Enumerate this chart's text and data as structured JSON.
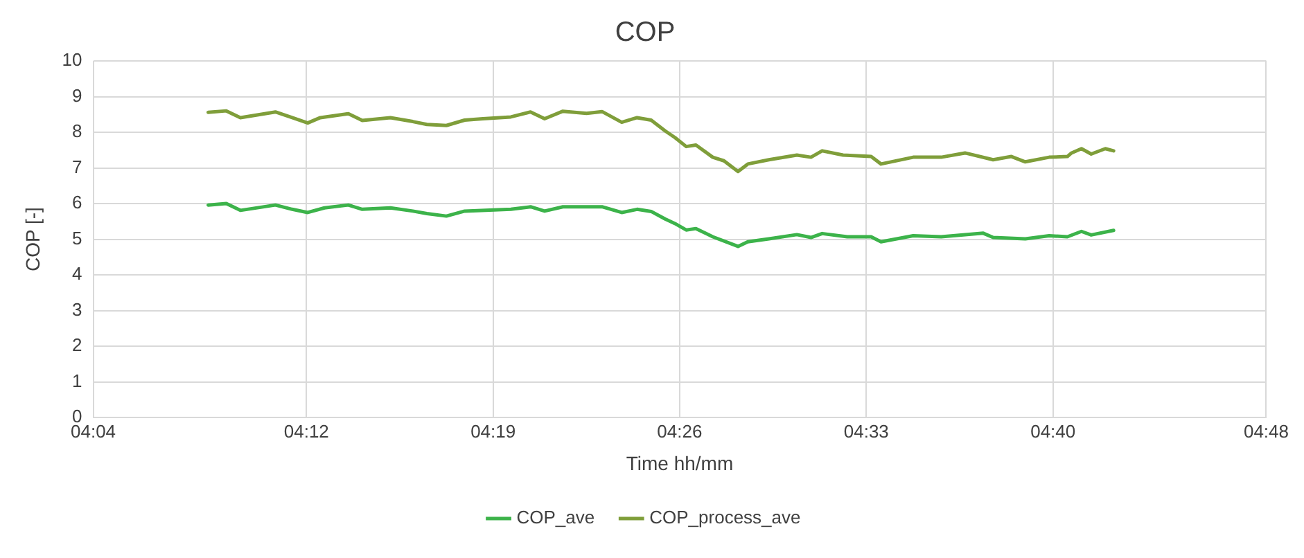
{
  "chart_data": {
    "type": "line",
    "title": "COP",
    "xlabel": "Time hh/mm",
    "ylabel": "COP [-]",
    "xlim": [
      4.0667,
      4.8
    ],
    "xticks": [
      {
        "value": 4.0667,
        "label": "04:04"
      },
      {
        "value": 4.2,
        "label": "04:12"
      },
      {
        "value": 4.3167,
        "label": "04:19"
      },
      {
        "value": 4.4333,
        "label": "04:26"
      },
      {
        "value": 4.55,
        "label": "04:33"
      },
      {
        "value": 4.6667,
        "label": "04:40"
      },
      {
        "value": 4.8,
        "label": "04:48"
      }
    ],
    "ylim": [
      0,
      10
    ],
    "yticks": [
      0,
      1,
      2,
      3,
      4,
      5,
      6,
      7,
      8,
      9,
      10
    ],
    "grid": true,
    "legend": "bottom",
    "marker": "none",
    "line_style": "solid",
    "series": [
      {
        "name": "COP_ave",
        "color": "#3cb34a",
        "x": [
          4.1386,
          4.1499,
          4.1587,
          4.1806,
          4.1911,
          4.2008,
          4.2113,
          4.2262,
          4.2349,
          4.2525,
          4.2665,
          4.2753,
          4.2875,
          4.2989,
          4.3278,
          4.3401,
          4.3489,
          4.3603,
          4.3848,
          4.3971,
          4.4067,
          4.4155,
          4.4242,
          4.4304,
          4.4374,
          4.4435,
          4.454,
          4.4698,
          4.4759,
          4.4891,
          4.5066,
          4.5154,
          4.5224,
          4.5381,
          4.553,
          4.5592,
          4.5793,
          4.5968,
          4.6231,
          4.6293,
          4.6494,
          4.6643,
          4.6757,
          4.6845,
          4.6906,
          4.7046
        ],
        "values": [
          5.96,
          6.0,
          5.81,
          5.96,
          5.84,
          5.75,
          5.88,
          5.96,
          5.84,
          5.88,
          5.79,
          5.72,
          5.65,
          5.79,
          5.84,
          5.91,
          5.79,
          5.91,
          5.91,
          5.75,
          5.84,
          5.78,
          5.57,
          5.44,
          5.26,
          5.3,
          5.07,
          4.8,
          4.93,
          5.01,
          5.13,
          5.05,
          5.16,
          5.07,
          5.07,
          4.93,
          5.1,
          5.07,
          5.17,
          5.05,
          5.01,
          5.1,
          5.07,
          5.22,
          5.12,
          5.25
        ]
      },
      {
        "name": "COP_process_ave",
        "color": "#7f9e3a",
        "x": [
          4.1386,
          4.1499,
          4.1587,
          4.1806,
          4.1911,
          4.2008,
          4.2087,
          4.2262,
          4.2349,
          4.2525,
          4.2665,
          4.2753,
          4.2875,
          4.2989,
          4.3103,
          4.3278,
          4.3401,
          4.3489,
          4.3603,
          4.3751,
          4.3848,
          4.3971,
          4.4067,
          4.4155,
          4.4242,
          4.4304,
          4.4374,
          4.4435,
          4.454,
          4.461,
          4.4698,
          4.4759,
          4.4891,
          4.5066,
          4.5154,
          4.5224,
          4.5355,
          4.553,
          4.5592,
          4.5793,
          4.5968,
          4.6117,
          4.6293,
          4.6407,
          4.6494,
          4.6643,
          4.6757,
          4.6783,
          4.6845,
          4.6906,
          4.6994,
          4.7046
        ],
        "values": [
          8.56,
          8.6,
          8.41,
          8.57,
          8.41,
          8.26,
          8.41,
          8.52,
          8.33,
          8.41,
          8.3,
          8.22,
          8.19,
          8.34,
          8.38,
          8.43,
          8.57,
          8.38,
          8.59,
          8.53,
          8.58,
          8.28,
          8.41,
          8.34,
          8.04,
          7.85,
          7.6,
          7.64,
          7.3,
          7.2,
          6.9,
          7.11,
          7.23,
          7.36,
          7.3,
          7.48,
          7.36,
          7.32,
          7.11,
          7.3,
          7.3,
          7.42,
          7.23,
          7.32,
          7.17,
          7.3,
          7.32,
          7.42,
          7.54,
          7.39,
          7.54,
          7.48
        ]
      }
    ]
  }
}
